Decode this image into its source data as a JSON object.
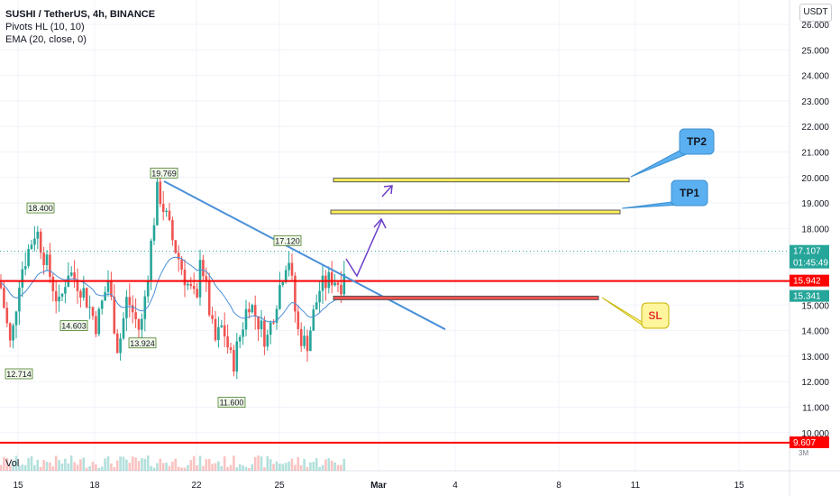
{
  "header": {
    "title": "SUSHI / TetherUS, 4h, BINANCE",
    "indicator_1": "Pivots HL (10, 10)",
    "indicator_2": "EMA (20, close, 0)"
  },
  "volume_label": "Vol",
  "axis_unit": "USDT",
  "colors": {
    "up": "#26a69a",
    "down": "#ef5350",
    "trendline": "#4a90d9",
    "ema": "#4a8fd8",
    "support": "#ff0000",
    "target_fill": "#ffee58",
    "stop_fill": "#ef5350",
    "callout": "#5ab0f0",
    "projection": "#6a3fc8"
  },
  "chart_data": {
    "type": "candlestick",
    "symbol": "SUSHI / TetherUS",
    "interval": "4h",
    "exchange": "BINANCE",
    "ylim": [
      9.5,
      26.5
    ],
    "y_ticks": [
      "26.000",
      "25.000",
      "24.000",
      "23.000",
      "22.000",
      "21.000",
      "20.000",
      "19.000",
      "18.000",
      "17.000",
      "16.000",
      "15.000",
      "14.000",
      "13.000",
      "12.000",
      "11.000",
      "10.000"
    ],
    "x_ticks": [
      "15",
      "18",
      "22",
      "25",
      "Mar",
      "4",
      "8",
      "11",
      "15"
    ],
    "price_tags": [
      {
        "label": "17.107",
        "sub": "01:45:49",
        "value": 17.107,
        "color": "#26a69a"
      },
      {
        "label": "15.942",
        "value": 15.942,
        "color": "#ff0000"
      },
      {
        "label": "15.341",
        "value": 15.341,
        "color": "#26a69a"
      },
      {
        "label": "9.607",
        "value": 9.607,
        "color": "#ff0000"
      }
    ],
    "horizontal_levels": [
      15.942,
      9.607
    ],
    "pivots": [
      {
        "label": "19.769",
        "value": 19.769,
        "kind": "high"
      },
      {
        "label": "18.400",
        "value": 18.4,
        "kind": "high"
      },
      {
        "label": "17.120",
        "value": 17.12,
        "kind": "high"
      },
      {
        "label": "14.603",
        "value": 14.603,
        "kind": "low"
      },
      {
        "label": "13.924",
        "value": 13.924,
        "kind": "low"
      },
      {
        "label": "12.714",
        "value": 12.714,
        "kind": "low"
      },
      {
        "label": "11.600",
        "value": 11.6,
        "kind": "low"
      }
    ],
    "zones": [
      {
        "name": "TP2",
        "label": "TP2",
        "top": 19.97,
        "bottom": 19.85
      },
      {
        "name": "TP1",
        "label": "TP1",
        "top": 18.72,
        "bottom": 18.6
      },
      {
        "name": "SL",
        "label": "SL",
        "top": 15.35,
        "bottom": 15.22
      }
    ]
  }
}
